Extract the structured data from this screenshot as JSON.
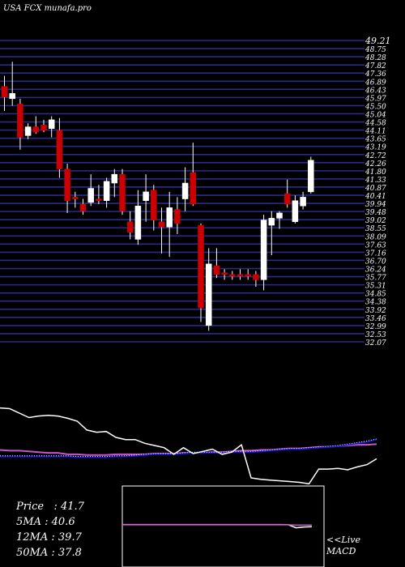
{
  "title": "USA FCX munafa.pro",
  "colors": {
    "background": "#000000",
    "grid": "#2a2a8c",
    "bull": "#ffffff",
    "bear": "#cc0000",
    "wick": "#ffffff",
    "ema_fast": "#ffffff",
    "ema_mid": "#1515cc",
    "ema_slow": "#cc55cc"
  },
  "chart_data": [
    {
      "type": "candlestick",
      "title": "",
      "price_labels": [
        "49.21",
        "48.75",
        "48.28",
        "47.82",
        "47.36",
        "46.89",
        "46.43",
        "45.97",
        "45.50",
        "45.04",
        "44.58",
        "44.11",
        "43.65",
        "43.19",
        "42.72",
        "42.26",
        "41.80",
        "41.33",
        "40.87",
        "40.41",
        "39.94",
        "39.48",
        "39.02",
        "38.55",
        "38.09",
        "37.63",
        "37.16",
        "36.70",
        "36.24",
        "35.77",
        "35.31",
        "34.85",
        "34.38",
        "33.92",
        "33.46",
        "32.99",
        "32.53",
        "32.07"
      ],
      "y_range": [
        32.07,
        49.21
      ],
      "candles": [
        {
          "o": 46.6,
          "h": 47.2,
          "l": 45.2,
          "c": 46.0
        },
        {
          "o": 45.9,
          "h": 48.0,
          "l": 45.5,
          "c": 46.2
        },
        {
          "o": 45.6,
          "h": 45.9,
          "l": 43.0,
          "c": 43.7
        },
        {
          "o": 43.8,
          "h": 44.5,
          "l": 43.6,
          "c": 44.3
        },
        {
          "o": 44.3,
          "h": 44.9,
          "l": 43.9,
          "c": 44.0
        },
        {
          "o": 44.4,
          "h": 44.7,
          "l": 44.0,
          "c": 44.1
        },
        {
          "o": 44.2,
          "h": 44.9,
          "l": 43.7,
          "c": 44.7
        },
        {
          "o": 44.1,
          "h": 44.8,
          "l": 41.4,
          "c": 41.9
        },
        {
          "o": 41.9,
          "h": 42.2,
          "l": 39.4,
          "c": 40.1
        },
        {
          "o": 40.3,
          "h": 40.6,
          "l": 39.7,
          "c": 40.2
        },
        {
          "o": 39.9,
          "h": 40.2,
          "l": 39.3,
          "c": 39.5
        },
        {
          "o": 40.0,
          "h": 41.6,
          "l": 39.8,
          "c": 40.8
        },
        {
          "o": 40.2,
          "h": 41.0,
          "l": 39.9,
          "c": 40.1
        },
        {
          "o": 40.1,
          "h": 41.4,
          "l": 39.7,
          "c": 41.2
        },
        {
          "o": 41.1,
          "h": 41.9,
          "l": 40.3,
          "c": 41.6
        },
        {
          "o": 41.6,
          "h": 41.9,
          "l": 39.3,
          "c": 39.5
        },
        {
          "o": 38.9,
          "h": 39.5,
          "l": 37.9,
          "c": 38.3
        },
        {
          "o": 37.9,
          "h": 40.7,
          "l": 37.6,
          "c": 39.8
        },
        {
          "o": 40.1,
          "h": 41.6,
          "l": 38.9,
          "c": 40.6
        },
        {
          "o": 40.7,
          "h": 41.0,
          "l": 38.4,
          "c": 39.0
        },
        {
          "o": 38.9,
          "h": 39.7,
          "l": 37.1,
          "c": 38.6
        },
        {
          "o": 38.6,
          "h": 40.6,
          "l": 36.9,
          "c": 39.7
        },
        {
          "o": 39.6,
          "h": 40.3,
          "l": 38.2,
          "c": 38.8
        },
        {
          "o": 40.2,
          "h": 42.0,
          "l": 39.5,
          "c": 41.1
        },
        {
          "o": 41.7,
          "h": 43.4,
          "l": 39.8,
          "c": 39.9
        },
        {
          "o": 38.7,
          "h": 38.8,
          "l": 33.2,
          "c": 34.0
        },
        {
          "o": 33.0,
          "h": 37.4,
          "l": 32.7,
          "c": 36.5
        },
        {
          "o": 36.4,
          "h": 37.4,
          "l": 35.7,
          "c": 35.9
        },
        {
          "o": 36.0,
          "h": 36.2,
          "l": 35.6,
          "c": 35.9
        },
        {
          "o": 35.9,
          "h": 36.1,
          "l": 35.6,
          "c": 35.8
        },
        {
          "o": 35.9,
          "h": 36.2,
          "l": 35.6,
          "c": 35.8
        },
        {
          "o": 35.9,
          "h": 36.2,
          "l": 35.6,
          "c": 35.8
        },
        {
          "o": 35.9,
          "h": 36.1,
          "l": 35.2,
          "c": 35.6
        },
        {
          "o": 35.6,
          "h": 39.3,
          "l": 35.0,
          "c": 39.0
        },
        {
          "o": 38.7,
          "h": 39.5,
          "l": 37.0,
          "c": 39.1
        },
        {
          "o": 39.1,
          "h": 39.5,
          "l": 38.5,
          "c": 39.4
        },
        {
          "o": 40.5,
          "h": 41.3,
          "l": 39.7,
          "c": 39.9
        },
        {
          "o": 38.9,
          "h": 40.4,
          "l": 38.8,
          "c": 40.1
        },
        {
          "o": 39.8,
          "h": 40.6,
          "l": 39.6,
          "c": 40.3
        },
        {
          "o": 40.6,
          "h": 42.6,
          "l": 40.5,
          "c": 42.4
        }
      ],
      "ema_fast": [
        48.6,
        48.5,
        47.9,
        47.3,
        47.5,
        47.6,
        47.5,
        47.2,
        46.8,
        45.6,
        45.3,
        45.4,
        44.6,
        44.3,
        44.3,
        43.8,
        43.5,
        43.2,
        42.3,
        43.2,
        42.4,
        42.7,
        43.0,
        42.3,
        42.6,
        43.6,
        39.1,
        38.9,
        38.8,
        38.7,
        38.6,
        38.5,
        38.3,
        40.3,
        40.3,
        40.4,
        40.2,
        40.6,
        40.9,
        41.7
      ],
      "ema_mid": [
        42.0,
        42.0,
        42.0,
        42.0,
        42.0,
        42.0,
        42.0,
        42.0,
        41.9,
        41.9,
        41.9,
        41.9,
        42.0,
        42.0,
        42.1,
        42.2,
        42.3,
        42.3,
        42.3,
        42.4,
        42.5,
        42.5,
        42.5,
        42.5,
        42.6,
        42.6,
        42.6,
        42.7,
        42.8,
        42.9,
        43.0,
        43.0,
        43.1,
        43.2,
        43.3,
        43.4,
        43.6,
        43.8,
        44.0,
        44.3
      ],
      "ema_slow": [
        42.9,
        42.8,
        42.8,
        42.7,
        42.6,
        42.5,
        42.5,
        42.3,
        42.3,
        42.2,
        42.2,
        42.2,
        42.3,
        42.3,
        42.3,
        42.3,
        42.4,
        42.4,
        42.4,
        42.5,
        42.5,
        42.5,
        42.6,
        42.6,
        42.7,
        42.8,
        42.8,
        42.9,
        42.9,
        43.0,
        43.1,
        43.1,
        43.2,
        43.3,
        43.3,
        43.4,
        43.5,
        43.6,
        43.6,
        43.7
      ]
    },
    {
      "type": "line",
      "title": "",
      "y_range": [
        -1,
        1
      ],
      "macd": [
        0.8,
        0.8,
        0.8,
        0.8,
        0.8,
        0.8,
        0.8,
        0.8,
        0.8,
        0.8,
        0.8,
        0.8,
        0.8,
        0.8,
        0.8,
        0.8,
        0.8,
        0.8,
        0.8,
        0.8,
        0.8,
        0.75,
        -0.55,
        -0.2,
        -0.1
      ],
      "signal": [
        0.7,
        0.7,
        0.7,
        0.7,
        0.7,
        0.7,
        0.7,
        0.7,
        0.7,
        0.7,
        0.7,
        0.7,
        0.7,
        0.7,
        0.7,
        0.7,
        0.7,
        0.7,
        0.7,
        0.7,
        0.7,
        0.7,
        0.6,
        0.6,
        0.6
      ]
    }
  ],
  "indicators": {
    "price": {
      "label": "Price",
      "value": "41.7"
    },
    "ma5": {
      "label": "5MA",
      "value": "40.6"
    },
    "ma12": {
      "label": "12MA",
      "value": "39.7"
    },
    "ma50": {
      "label": "50MA",
      "value": "37.8"
    }
  },
  "macd_label": {
    "line1": "<<Live",
    "line2": "MACD"
  }
}
